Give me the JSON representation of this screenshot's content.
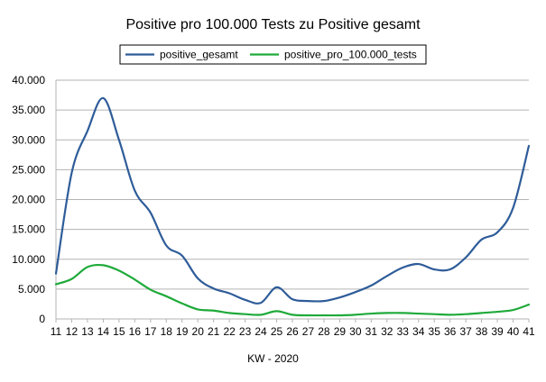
{
  "chart_data": {
    "type": "line",
    "title": "Positive pro 100.000 Tests zu Positive gesamt",
    "xlabel": "KW - 2020",
    "ylabel": "",
    "x": [
      11,
      12,
      13,
      14,
      15,
      16,
      17,
      18,
      19,
      20,
      21,
      22,
      23,
      24,
      25,
      26,
      27,
      28,
      29,
      30,
      31,
      32,
      33,
      34,
      35,
      36,
      37,
      38,
      39,
      40,
      41
    ],
    "xlim": [
      11,
      41
    ],
    "ylim": [
      0,
      40000
    ],
    "yticks": [
      "0",
      "5.000",
      "10.000",
      "15.000",
      "20.000",
      "25.000",
      "30.000",
      "35.000",
      "40.000"
    ],
    "xticks": [
      "11",
      "12",
      "13",
      "14",
      "15",
      "16",
      "17",
      "18",
      "19",
      "20",
      "21",
      "22",
      "23",
      "24",
      "25",
      "26",
      "27",
      "28",
      "29",
      "30",
      "31",
      "32",
      "33",
      "34",
      "35",
      "36",
      "37",
      "38",
      "39",
      "40",
      "41"
    ],
    "grid": true,
    "legend_position": "top",
    "series": [
      {
        "name": "positive_gesamt",
        "color": "#2e5c99",
        "values": [
          7600,
          24500,
          31500,
          37000,
          30000,
          21500,
          17800,
          12300,
          10600,
          6800,
          5100,
          4300,
          3200,
          2700,
          5300,
          3300,
          3000,
          3000,
          3600,
          4500,
          5600,
          7200,
          8600,
          9200,
          8300,
          8300,
          10300,
          13300,
          14500,
          18600,
          29000
        ]
      },
      {
        "name": "positive_pro_100.000_tests",
        "color": "#1faa3a",
        "values": [
          5800,
          6700,
          8700,
          9000,
          8100,
          6600,
          4900,
          3800,
          2600,
          1600,
          1400,
          1000,
          800,
          700,
          1300,
          700,
          600,
          600,
          600,
          700,
          900,
          1000,
          1000,
          900,
          800,
          700,
          800,
          1000,
          1200,
          1500,
          2400
        ]
      }
    ]
  }
}
